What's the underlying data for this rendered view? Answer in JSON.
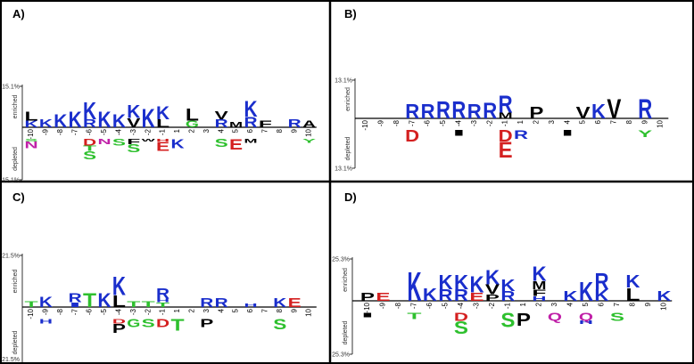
{
  "chart_data": [
    {
      "type": "logo",
      "title": "A)",
      "y_label_top": "enriched",
      "y_label_bottom": "depleted",
      "ylim": [
        -15.1,
        15.1
      ],
      "yticks": [
        {
          "value": 15.1,
          "label": "15.1%"
        },
        {
          "value": -15.1,
          "label": "15.1%"
        }
      ],
      "positions": [
        -10,
        -9,
        -8,
        -7,
        -6,
        -5,
        -4,
        -3,
        -2,
        -1,
        1,
        2,
        3,
        4,
        5,
        6,
        7,
        8,
        9,
        10
      ],
      "letters": [
        {
          "pos": -10,
          "char": "K",
          "color": "#1a2ecc",
          "value": 2.5
        },
        {
          "pos": -10,
          "char": "L",
          "color": "#000000",
          "value": 3.5
        },
        {
          "pos": -9,
          "char": "K",
          "color": "#1a2ecc",
          "value": 3
        },
        {
          "pos": -8,
          "char": "K",
          "color": "#1a2ecc",
          "value": 5
        },
        {
          "pos": -7,
          "char": "K",
          "color": "#1a2ecc",
          "value": 6
        },
        {
          "pos": -6,
          "char": "R",
          "color": "#1a2ecc",
          "value": 3
        },
        {
          "pos": -6,
          "char": "K",
          "color": "#1a2ecc",
          "value": 6.5
        },
        {
          "pos": -5,
          "char": "K",
          "color": "#1a2ecc",
          "value": 6
        },
        {
          "pos": -4,
          "char": "K",
          "color": "#1a2ecc",
          "value": 5
        },
        {
          "pos": -3,
          "char": "V",
          "color": "#000000",
          "value": 3.5
        },
        {
          "pos": -3,
          "char": "K",
          "color": "#1a2ecc",
          "value": 5
        },
        {
          "pos": -2,
          "char": "K",
          "color": "#1a2ecc",
          "value": 7
        },
        {
          "pos": -1,
          "char": "L",
          "color": "#000000",
          "value": 3
        },
        {
          "pos": -1,
          "char": "K",
          "color": "#1a2ecc",
          "value": 5
        },
        {
          "pos": 2,
          "char": "G",
          "color": "#2ec02e",
          "value": 2.5
        },
        {
          "pos": 2,
          "char": "L",
          "color": "#000000",
          "value": 4.5
        },
        {
          "pos": 4,
          "char": "R",
          "color": "#1a2ecc",
          "value": 3
        },
        {
          "pos": 4,
          "char": "V",
          "color": "#000000",
          "value": 3
        },
        {
          "pos": 5,
          "char": "M",
          "color": "#000000",
          "value": 2
        },
        {
          "pos": 6,
          "char": "R",
          "color": "#1a2ecc",
          "value": 4
        },
        {
          "pos": 6,
          "char": "K",
          "color": "#1a2ecc",
          "value": 6
        },
        {
          "pos": 7,
          "char": "F",
          "color": "#000000",
          "value": 2.5
        },
        {
          "pos": 9,
          "char": "R",
          "color": "#1a2ecc",
          "value": 3
        },
        {
          "pos": 10,
          "char": "A",
          "color": "#000000",
          "value": 2.5
        },
        {
          "pos": 1,
          "char": "K",
          "color": "#1a2ecc",
          "value": -3.5
        },
        {
          "pos": -10,
          "char": "S",
          "color": "#2ec02e",
          "value": -1
        },
        {
          "pos": -10,
          "char": "N",
          "color": "#c020a8",
          "value": -2.5
        },
        {
          "pos": -6,
          "char": "D",
          "color": "#d42020",
          "value": -2.5
        },
        {
          "pos": -6,
          "char": "T",
          "color": "#2ec02e",
          "value": -2
        },
        {
          "pos": -6,
          "char": "S",
          "color": "#2ec02e",
          "value": -3
        },
        {
          "pos": -5,
          "char": "N",
          "color": "#c020a8",
          "value": -2
        },
        {
          "pos": -4,
          "char": "S",
          "color": "#2ec02e",
          "value": -2.5
        },
        {
          "pos": -3,
          "char": "F",
          "color": "#000000",
          "value": -2
        },
        {
          "pos": -3,
          "char": "S",
          "color": "#2ec02e",
          "value": -3
        },
        {
          "pos": -2,
          "char": "W",
          "color": "#000000",
          "value": -1
        },
        {
          "pos": -1,
          "char": "H",
          "color": "#d42020",
          "value": -1
        },
        {
          "pos": -1,
          "char": "E",
          "color": "#d42020",
          "value": -3.5
        },
        {
          "pos": 4,
          "char": "S",
          "color": "#2ec02e",
          "value": -3
        },
        {
          "pos": 5,
          "char": "E",
          "color": "#d42020",
          "value": -4
        },
        {
          "pos": 6,
          "char": "M",
          "color": "#000000",
          "value": -1.5
        },
        {
          "pos": 10,
          "char": "Y",
          "color": "#2ec02e",
          "value": -1.5
        }
      ]
    },
    {
      "type": "logo",
      "title": "B)",
      "y_label_top": "enriched",
      "y_label_bottom": "depleted",
      "ylim": [
        -13.1,
        13.1
      ],
      "yticks": [
        {
          "value": 13.1,
          "label": "13.1%"
        },
        {
          "value": -13.1,
          "label": "13.1%"
        }
      ],
      "positions": [
        -10,
        -9,
        -8,
        -7,
        -6,
        -5,
        -4,
        -3,
        -2,
        -1,
        1,
        2,
        3,
        4,
        5,
        6,
        7,
        8,
        9,
        10
      ],
      "letters": [
        {
          "pos": -7,
          "char": "R",
          "color": "#1a2ecc",
          "value": 5
        },
        {
          "pos": -6,
          "char": "R",
          "color": "#1a2ecc",
          "value": 5
        },
        {
          "pos": -5,
          "char": "R",
          "color": "#1a2ecc",
          "value": 6
        },
        {
          "pos": -4,
          "char": "R",
          "color": "#1a2ecc",
          "value": 6
        },
        {
          "pos": -3,
          "char": "R",
          "color": "#1a2ecc",
          "value": 5
        },
        {
          "pos": -2,
          "char": "R",
          "color": "#1a2ecc",
          "value": 5.5
        },
        {
          "pos": -1,
          "char": "M",
          "color": "#000000",
          "value": 2
        },
        {
          "pos": -1,
          "char": "R",
          "color": "#1a2ecc",
          "value": 6
        },
        {
          "pos": 2,
          "char": "P",
          "color": "#000000",
          "value": 4
        },
        {
          "pos": 5,
          "char": "V",
          "color": "#000000",
          "value": 4
        },
        {
          "pos": 6,
          "char": "K",
          "color": "#1a2ecc",
          "value": 5
        },
        {
          "pos": 7,
          "char": "V",
          "color": "#000000",
          "value": 7
        },
        {
          "pos": 9,
          "char": "R",
          "color": "#1a2ecc",
          "value": 7
        },
        {
          "pos": 1,
          "char": "R",
          "color": "#1a2ecc",
          "value": -3
        },
        {
          "pos": -7,
          "char": "D",
          "color": "#d42020",
          "value": -4
        },
        {
          "pos": -4,
          "char": "I",
          "color": "#000000",
          "value": -2
        },
        {
          "pos": -1,
          "char": "D",
          "color": "#d42020",
          "value": -4
        },
        {
          "pos": -1,
          "char": "E",
          "color": "#d42020",
          "value": -5.5
        },
        {
          "pos": 4,
          "char": "I",
          "color": "#000000",
          "value": -2
        },
        {
          "pos": 9,
          "char": "Y",
          "color": "#2ec02e",
          "value": -2.5
        }
      ]
    },
    {
      "type": "logo",
      "title": "C)",
      "y_label_top": "enriched",
      "y_label_bottom": "depleted",
      "ylim": [
        -21.5,
        21.5
      ],
      "yticks": [
        {
          "value": 21.5,
          "label": "21.5%"
        },
        {
          "value": -21.5,
          "label": "21.5%"
        }
      ],
      "positions": [
        -10,
        -9,
        -8,
        -7,
        -6,
        -5,
        -4,
        -3,
        -2,
        -1,
        1,
        2,
        3,
        4,
        5,
        6,
        7,
        8,
        9,
        10
      ],
      "letters": [
        {
          "pos": -10,
          "char": "T",
          "color": "#2ec02e",
          "value": 2.5
        },
        {
          "pos": -9,
          "char": "K",
          "color": "#1a2ecc",
          "value": 4.5
        },
        {
          "pos": -7,
          "char": "I",
          "color": "#1a2ecc",
          "value": 2
        },
        {
          "pos": -7,
          "char": "R",
          "color": "#1a2ecc",
          "value": 4
        },
        {
          "pos": -6,
          "char": "T",
          "color": "#2ec02e",
          "value": 6
        },
        {
          "pos": -5,
          "char": "K",
          "color": "#1a2ecc",
          "value": 6
        },
        {
          "pos": -4,
          "char": "L",
          "color": "#000000",
          "value": 5
        },
        {
          "pos": -4,
          "char": "K",
          "color": "#1a2ecc",
          "value": 8
        },
        {
          "pos": -3,
          "char": "T",
          "color": "#2ec02e",
          "value": 2.5
        },
        {
          "pos": -2,
          "char": "T",
          "color": "#2ec02e",
          "value": 2.5
        },
        {
          "pos": -1,
          "char": "T",
          "color": "#2ec02e",
          "value": 2
        },
        {
          "pos": -1,
          "char": "H",
          "color": "#1a2ecc",
          "value": 1.5
        },
        {
          "pos": -1,
          "char": "R",
          "color": "#1a2ecc",
          "value": 4.5
        },
        {
          "pos": 3,
          "char": "R",
          "color": "#1a2ecc",
          "value": 4
        },
        {
          "pos": 4,
          "char": "R",
          "color": "#1a2ecc",
          "value": 4
        },
        {
          "pos": 6,
          "char": "H",
          "color": "#1a2ecc",
          "value": 1.5
        },
        {
          "pos": 8,
          "char": "K",
          "color": "#1a2ecc",
          "value": 4
        },
        {
          "pos": 9,
          "char": "E",
          "color": "#d42020",
          "value": 4
        },
        {
          "pos": -9,
          "char": "H",
          "color": "#1a2ecc",
          "value": -2
        },
        {
          "pos": 1,
          "char": "T",
          "color": "#2ec02e",
          "value": -5
        },
        {
          "pos": -4,
          "char": "D",
          "color": "#d42020",
          "value": -2
        },
        {
          "pos": -4,
          "char": "P",
          "color": "#000000",
          "value": -4
        },
        {
          "pos": -3,
          "char": "G",
          "color": "#2ec02e",
          "value": -3.5
        },
        {
          "pos": -2,
          "char": "S",
          "color": "#2ec02e",
          "value": -3.5
        },
        {
          "pos": -1,
          "char": "D",
          "color": "#d42020",
          "value": -3.5
        },
        {
          "pos": 3,
          "char": "P",
          "color": "#000000",
          "value": -3.5
        },
        {
          "pos": 8,
          "char": "S",
          "color": "#2ec02e",
          "value": -4.5
        }
      ]
    },
    {
      "type": "logo",
      "title": "D)",
      "y_label_top": "enriched",
      "y_label_bottom": "depleted",
      "ylim": [
        -25.3,
        25.3
      ],
      "yticks": [
        {
          "value": 25.3,
          "label": "25.3%"
        },
        {
          "value": -25.3,
          "label": "25.3%"
        }
      ],
      "positions": [
        -10,
        -9,
        -8,
        -7,
        -6,
        -5,
        -4,
        -3,
        -2,
        -1,
        1,
        2,
        3,
        4,
        5,
        6,
        7,
        8,
        9,
        10
      ],
      "letters": [
        {
          "pos": -10,
          "char": "P",
          "color": "#000000",
          "value": 5
        },
        {
          "pos": -9,
          "char": "E",
          "color": "#d42020",
          "value": 5
        },
        {
          "pos": -7,
          "char": "K",
          "color": "#1a2ecc",
          "value": 18
        },
        {
          "pos": -6,
          "char": "K",
          "color": "#1a2ecc",
          "value": 8
        },
        {
          "pos": -5,
          "char": "R",
          "color": "#1a2ecc",
          "value": 7
        },
        {
          "pos": -5,
          "char": "K",
          "color": "#1a2ecc",
          "value": 9
        },
        {
          "pos": -4,
          "char": "R",
          "color": "#1a2ecc",
          "value": 7
        },
        {
          "pos": -4,
          "char": "K",
          "color": "#1a2ecc",
          "value": 9
        },
        {
          "pos": -3,
          "char": "E",
          "color": "#d42020",
          "value": 5
        },
        {
          "pos": -3,
          "char": "K",
          "color": "#1a2ecc",
          "value": 10
        },
        {
          "pos": -2,
          "char": "P",
          "color": "#000000",
          "value": 4
        },
        {
          "pos": -2,
          "char": "V",
          "color": "#000000",
          "value": 6
        },
        {
          "pos": -2,
          "char": "K",
          "color": "#1a2ecc",
          "value": 9
        },
        {
          "pos": -1,
          "char": "R",
          "color": "#1a2ecc",
          "value": 6
        },
        {
          "pos": -1,
          "char": "K",
          "color": "#1a2ecc",
          "value": 7
        },
        {
          "pos": 2,
          "char": "H",
          "color": "#1a2ecc",
          "value": 3
        },
        {
          "pos": 2,
          "char": "F",
          "color": "#000000",
          "value": 4
        },
        {
          "pos": 2,
          "char": "M",
          "color": "#000000",
          "value": 5
        },
        {
          "pos": 2,
          "char": "K",
          "color": "#1a2ecc",
          "value": 9
        },
        {
          "pos": 4,
          "char": "K",
          "color": "#1a2ecc",
          "value": 6
        },
        {
          "pos": 5,
          "char": "K",
          "color": "#1a2ecc",
          "value": 12
        },
        {
          "pos": 6,
          "char": "K",
          "color": "#1a2ecc",
          "value": 7
        },
        {
          "pos": 6,
          "char": "R",
          "color": "#1a2ecc",
          "value": 10
        },
        {
          "pos": 8,
          "char": "L",
          "color": "#000000",
          "value": 8
        },
        {
          "pos": 8,
          "char": "K",
          "color": "#1a2ecc",
          "value": 8
        },
        {
          "pos": 10,
          "char": "K",
          "color": "#1a2ecc",
          "value": 6
        },
        {
          "pos": 1,
          "char": "P",
          "color": "#000000",
          "value": -8
        },
        {
          "pos": -10,
          "char": "I",
          "color": "#000000",
          "value": -3
        },
        {
          "pos": -7,
          "char": "T",
          "color": "#2ec02e",
          "value": -4
        },
        {
          "pos": -4,
          "char": "D",
          "color": "#d42020",
          "value": -5
        },
        {
          "pos": -4,
          "char": "S",
          "color": "#2ec02e",
          "value": -8
        },
        {
          "pos": -1,
          "char": "S",
          "color": "#2ec02e",
          "value": -9
        },
        {
          "pos": 3,
          "char": "Q",
          "color": "#c020a8",
          "value": -5
        },
        {
          "pos": 5,
          "char": "Q",
          "color": "#c020a8",
          "value": -5
        },
        {
          "pos": 5,
          "char": "H",
          "color": "#1a2ecc",
          "value": -2
        },
        {
          "pos": 7,
          "char": "S",
          "color": "#2ec02e",
          "value": -5
        }
      ]
    }
  ]
}
